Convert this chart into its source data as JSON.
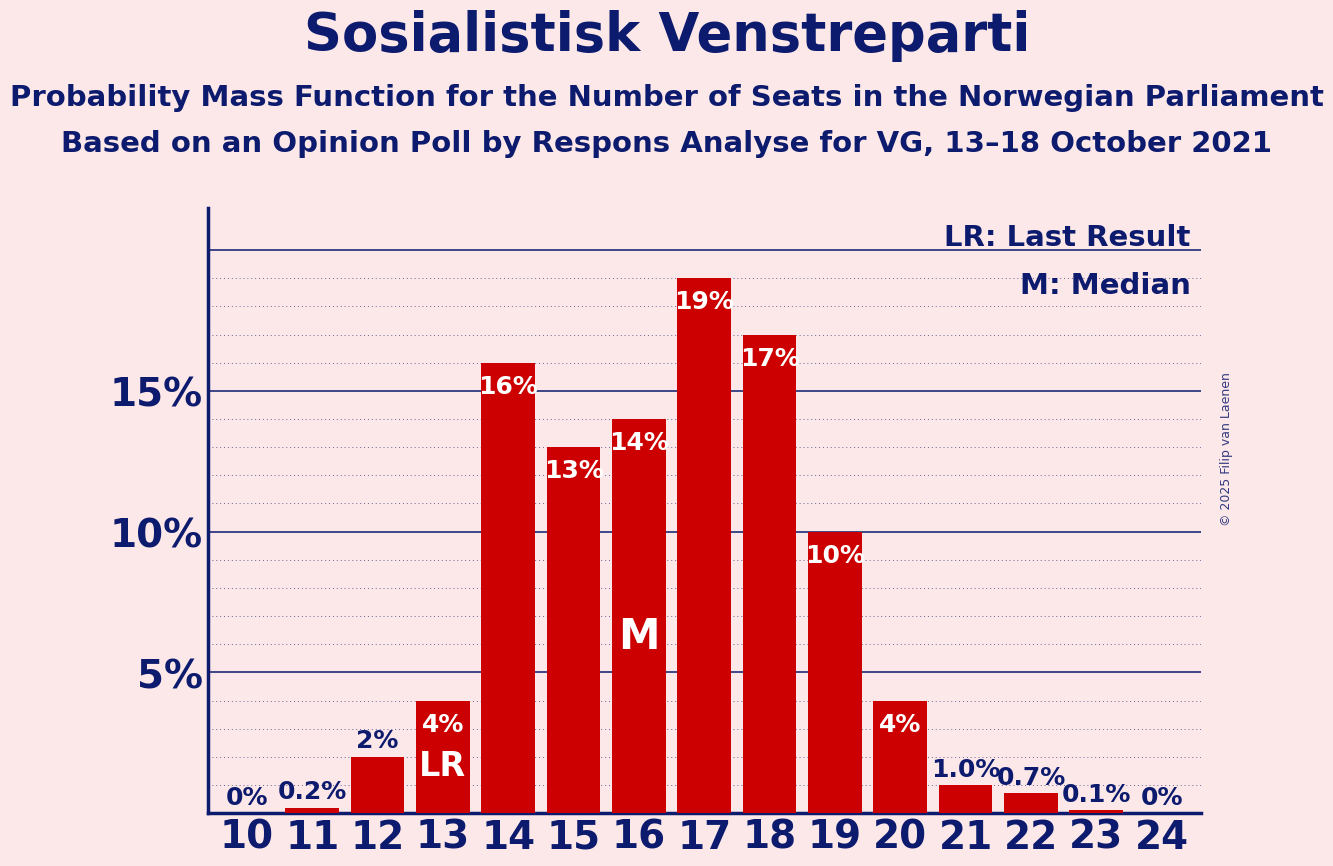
{
  "title": "Sosialistisk Venstreparti",
  "subtitle1": "Probability Mass Function for the Number of Seats in the Norwegian Parliament",
  "subtitle2": "Based on an Opinion Poll by Respons Analyse for VG, 13–18 October 2021",
  "copyright": "© 2025 Filip van Laenen",
  "categories": [
    10,
    11,
    12,
    13,
    14,
    15,
    16,
    17,
    18,
    19,
    20,
    21,
    22,
    23,
    24
  ],
  "values": [
    0.0,
    0.2,
    2.0,
    4.0,
    16.0,
    13.0,
    14.0,
    19.0,
    17.0,
    10.0,
    4.0,
    1.0,
    0.7,
    0.1,
    0.0
  ],
  "bar_labels": [
    "0%",
    "0.2%",
    "2%",
    "4%",
    "16%",
    "13%",
    "14%",
    "19%",
    "17%",
    "10%",
    "4%",
    "1.0%",
    "0.7%",
    "0.1%",
    "0%"
  ],
  "bar_color": "#cc0000",
  "background_color": "#fce8e8",
  "title_color": "#0d1b6e",
  "bar_label_color": "#0d1b6e",
  "bar_label_color_inside": "#ffffff",
  "axis_color": "#0d1b6e",
  "grid_color": "#0d1b6e",
  "lr_seat": 13,
  "median_seat": 16,
  "ylim_max": 21.5,
  "yticks": [
    5,
    10,
    15
  ],
  "ytick_labels": [
    "5%",
    "10%",
    "15%"
  ],
  "legend_lr": "LR: Last Result",
  "legend_m": "M: Median",
  "title_fontsize": 38,
  "subtitle_fontsize": 21,
  "axis_label_fontsize": 28,
  "bar_label_fontsize": 18,
  "legend_fontsize": 21,
  "copyright_fontsize": 9
}
